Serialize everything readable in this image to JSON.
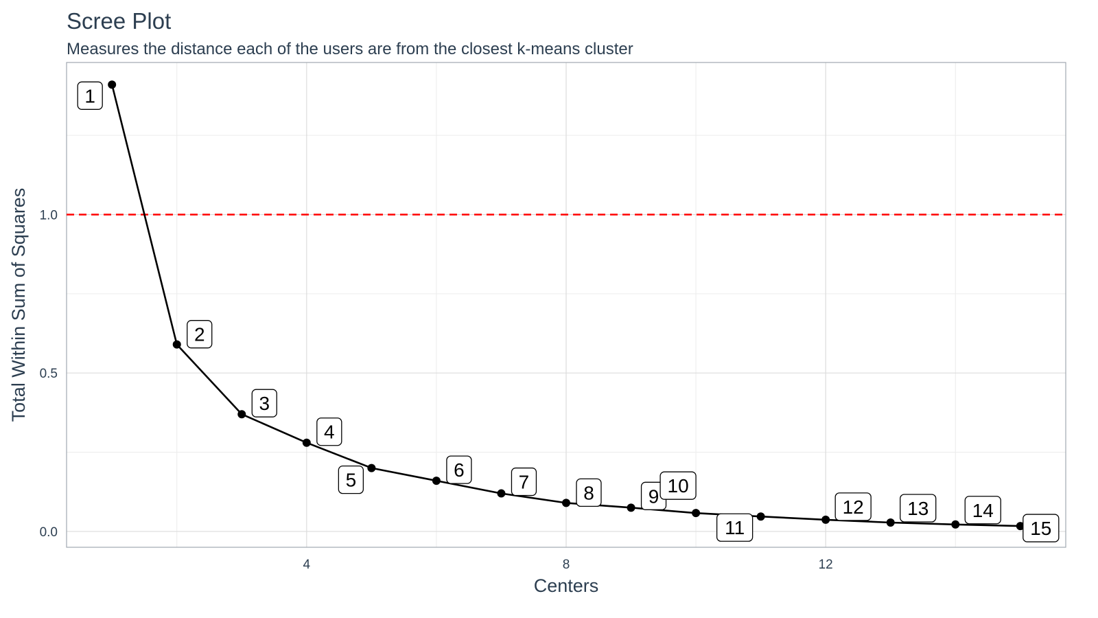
{
  "chart_data": {
    "type": "line",
    "title": "Scree Plot",
    "subtitle": "Measures the distance each of the users are from the closest k-means cluster",
    "xlabel": "Centers",
    "ylabel": "Total Within Sum of Squares",
    "x": [
      1,
      2,
      3,
      4,
      5,
      6,
      7,
      8,
      9,
      10,
      11,
      12,
      13,
      14,
      15
    ],
    "series": [
      {
        "values": [
          1.41,
          0.59,
          0.37,
          0.28,
          0.2,
          0.16,
          0.12,
          0.09,
          0.075,
          0.058,
          0.047,
          0.037,
          0.028,
          0.022,
          0.017
        ],
        "color": "#000000"
      }
    ],
    "point_labels": [
      "1",
      "2",
      "3",
      "4",
      "5",
      "6",
      "7",
      "8",
      "9",
      "10",
      "11",
      "12",
      "13",
      "14",
      "15"
    ],
    "xlim": [
      0.3,
      15.7
    ],
    "ylim": [
      -0.05,
      1.48
    ],
    "x_ticks": [
      4,
      8,
      12
    ],
    "x_tick_labels": [
      "4",
      "8",
      "12"
    ],
    "y_ticks": [
      0.0,
      0.5,
      1.0
    ],
    "y_tick_labels": [
      "0.0",
      "0.5",
      "1.0"
    ],
    "reference_line": {
      "y": 1.0,
      "color": "#ff0000",
      "style": "dashed"
    },
    "grid": true,
    "legend": "none"
  }
}
